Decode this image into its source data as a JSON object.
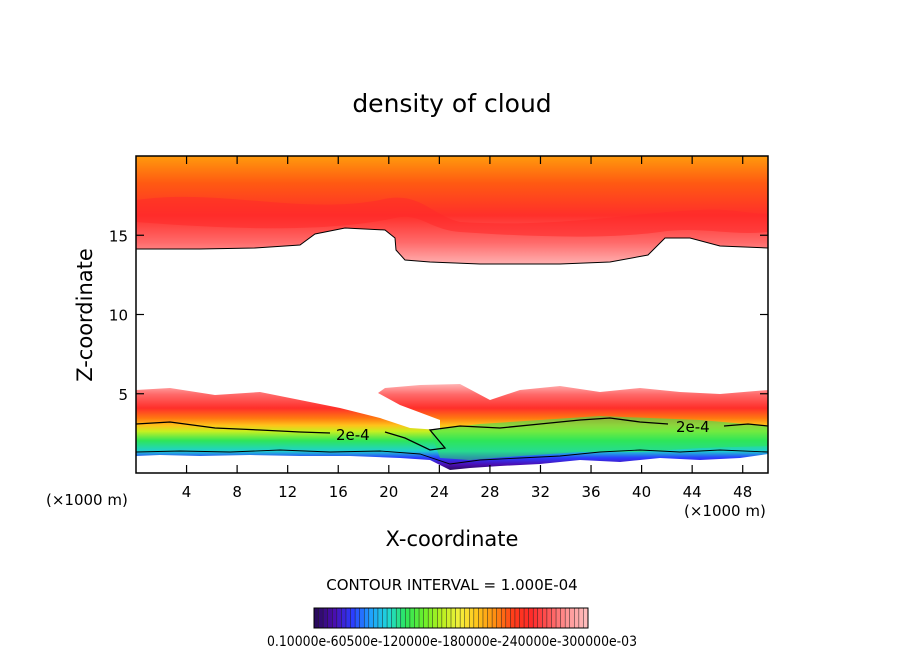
{
  "chart_data": {
    "type": "heatmap",
    "title": "density of cloud",
    "xlabel": "X-coordinate",
    "ylabel": "Z-coordinate",
    "x_unit": "(×1000 m)",
    "x_unit_right": "(×1000 m)",
    "xlim": [
      0,
      50
    ],
    "ylim": [
      0,
      20
    ],
    "x_ticks": [
      4,
      8,
      12,
      16,
      20,
      24,
      28,
      32,
      36,
      40,
      44,
      48
    ],
    "y_ticks": [
      5,
      10,
      15
    ],
    "contour_label_values": [
      "2e-4",
      "2e-4"
    ],
    "contour_interval": "CONTOUR INTERVAL = 1.000E-04",
    "colorbar": {
      "labels_text": "0.10000e-60500e-120000e-180000e-240000e-300000e-03",
      "n_bands": 60
    },
    "colors": {
      "palette": [
        "#2a0a5e",
        "#4b0db0",
        "#2b3bff",
        "#1f9fff",
        "#1fd8d8",
        "#2ee65a",
        "#6bf02a",
        "#b8f020",
        "#f6f03c",
        "#ffc21a",
        "#ff8a10",
        "#ff3a1a",
        "#ff2a2a",
        "#ff5a5a",
        "#ff9696",
        "#ffbcbc"
      ],
      "axis": "#000000",
      "contour": "#000000"
    }
  }
}
